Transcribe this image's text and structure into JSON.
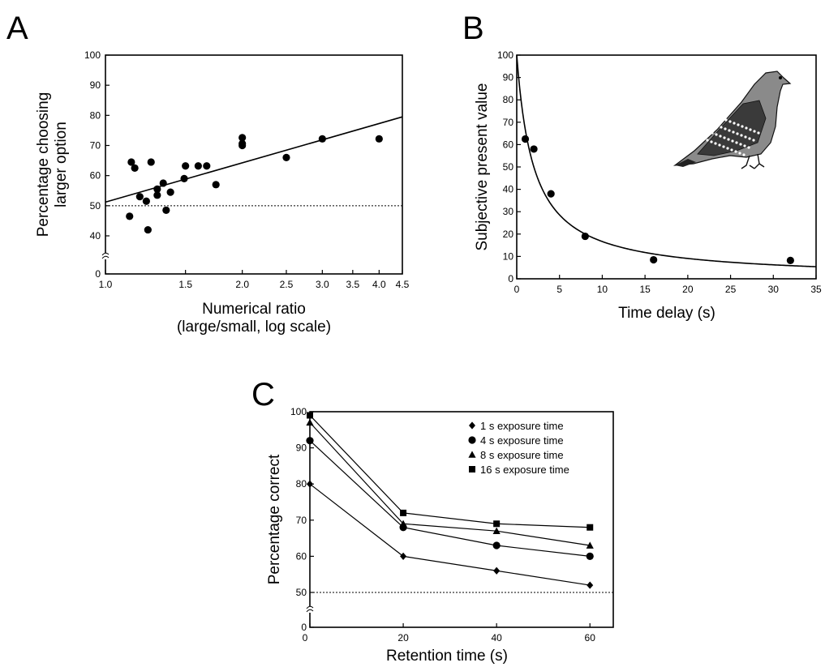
{
  "chart_data": [
    {
      "panel": "A",
      "type": "scatter",
      "title": "",
      "xlabel": [
        "Numerical ratio",
        "(large/small, log scale)"
      ],
      "ylabel": [
        "Percentage choosing",
        "larger option"
      ],
      "x_scale": "log",
      "xlim": [
        1.0,
        4.5
      ],
      "ylim": [
        0,
        100
      ],
      "y_axis_break": true,
      "x_ticks": [
        1.0,
        1.5,
        2.0,
        2.5,
        3.0,
        3.5,
        4.0,
        4.5
      ],
      "x_tick_labels": [
        "1.0",
        "1.5",
        "2.0",
        "2.5",
        "3.0",
        "3.5",
        "4.0",
        "4.5"
      ],
      "y_ticks": [
        0,
        40,
        50,
        60,
        70,
        80,
        90,
        100
      ],
      "y_tick_labels": [
        "0",
        "40",
        "50",
        "60",
        "70",
        "80",
        "90",
        "100"
      ],
      "reference_line_y": 50,
      "fit_line": [
        [
          1.0,
          51.2
        ],
        [
          4.5,
          79.5
        ]
      ],
      "points": [
        [
          1.13,
          46.5
        ],
        [
          1.14,
          64.5
        ],
        [
          1.16,
          62.5
        ],
        [
          1.19,
          53.0
        ],
        [
          1.23,
          51.5
        ],
        [
          1.24,
          42.0
        ],
        [
          1.26,
          64.5
        ],
        [
          1.3,
          55.5
        ],
        [
          1.3,
          53.5
        ],
        [
          1.34,
          57.5
        ],
        [
          1.36,
          48.5
        ],
        [
          1.39,
          54.5
        ],
        [
          1.49,
          59.0
        ],
        [
          1.5,
          63.2
        ],
        [
          1.6,
          63.2
        ],
        [
          1.67,
          63.2
        ],
        [
          1.75,
          57.0
        ],
        [
          2.0,
          70.0
        ],
        [
          2.0,
          70.6
        ],
        [
          2.0,
          72.6
        ],
        [
          2.5,
          66.0
        ],
        [
          3.0,
          72.2
        ],
        [
          4.0,
          72.2
        ]
      ]
    },
    {
      "panel": "B",
      "type": "scatter",
      "title": "",
      "xlabel": "Time delay (s)",
      "ylabel": "Subjective present value",
      "xlim": [
        0,
        35
      ],
      "ylim": [
        0,
        100
      ],
      "x_ticks": [
        0,
        5,
        10,
        15,
        20,
        25,
        30,
        35
      ],
      "y_ticks": [
        0,
        10,
        20,
        30,
        40,
        50,
        60,
        70,
        80,
        90,
        100
      ],
      "curve": "hyperbolic",
      "curve_v0": 100,
      "curve_k": 0.5,
      "points": [
        [
          1,
          62.5
        ],
        [
          2,
          58.0
        ],
        [
          4,
          38.0
        ],
        [
          8,
          19.0
        ],
        [
          16,
          8.5
        ],
        [
          32,
          8.2
        ]
      ],
      "illustration": "pigeon-drawing"
    },
    {
      "panel": "C",
      "type": "line",
      "title": "",
      "xlabel": "Retention time (s)",
      "ylabel": "Percentage correct",
      "xlim": [
        0,
        65
      ],
      "ylim": [
        0,
        100
      ],
      "y_axis_break": true,
      "x_ticks": [
        0,
        20,
        40,
        60
      ],
      "y_ticks": [
        0,
        50,
        60,
        70,
        80,
        90,
        100
      ],
      "reference_line_y": 50,
      "legend_position": "top-right",
      "x": [
        0,
        20,
        40,
        60
      ],
      "series": [
        {
          "name": "1 s exposure time",
          "marker": "diamond",
          "values": [
            80,
            60,
            56,
            52
          ]
        },
        {
          "name": "4 s exposure time",
          "marker": "circle",
          "values": [
            92,
            68,
            63,
            60
          ]
        },
        {
          "name": "8 s exposure time",
          "marker": "triangle",
          "values": [
            97,
            69,
            67,
            63
          ]
        },
        {
          "name": "16 s exposure time",
          "marker": "square",
          "values": [
            99,
            72,
            69,
            68
          ]
        }
      ]
    }
  ]
}
